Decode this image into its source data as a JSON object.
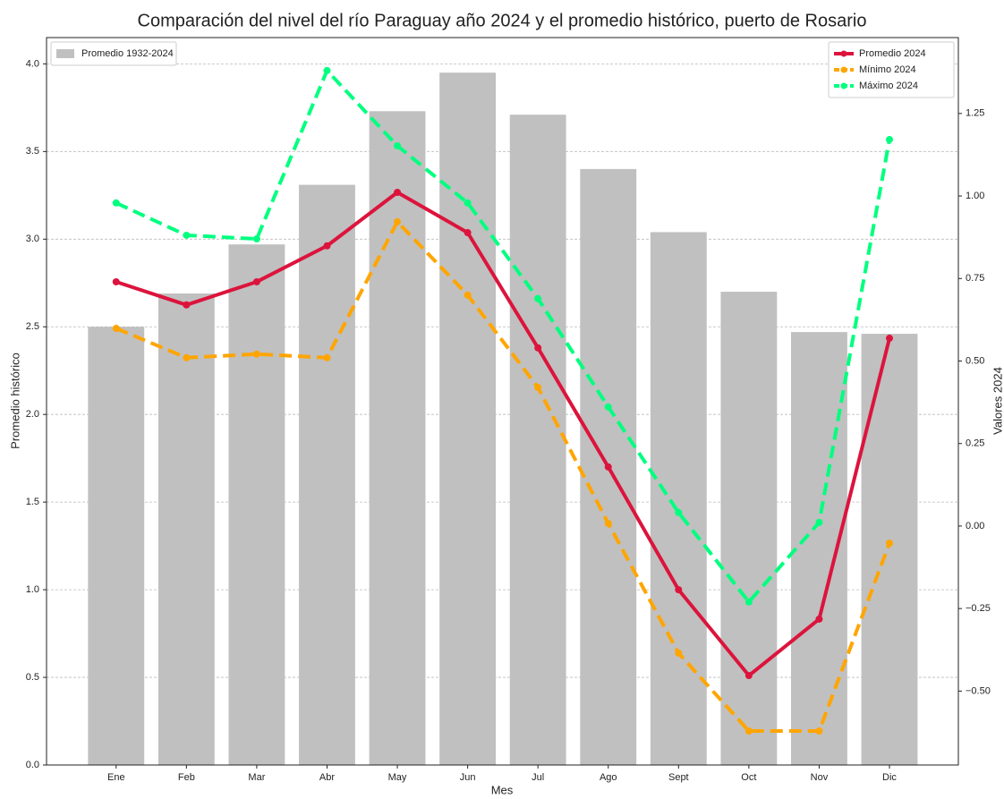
{
  "chart_data": {
    "type": "combo",
    "title": "Comparación del nivel del río Paraguay año 2024 y el promedio histórico, puerto de Rosario",
    "xlabel": "Mes",
    "ylabel": "Promedio histórico",
    "y2label": "Valores 2024",
    "categories": [
      "Ene",
      "Feb",
      "Mar",
      "Abr",
      "May",
      "Jun",
      "Jul",
      "Ago",
      "Sept",
      "Oct",
      "Nov",
      "Dic"
    ],
    "series": [
      {
        "name": "Promedio 1932-2024",
        "color": "#c0c0c0",
        "kind": "bar",
        "values": [
          2.5,
          2.69,
          2.97,
          3.31,
          3.73,
          3.95,
          3.71,
          3.4,
          3.04,
          2.7,
          2.47,
          2.46
        ]
      },
      {
        "name": "Promedio 2024",
        "color": "#dc143c",
        "kind": "line",
        "dashed": false,
        "axis": "y2",
        "values": [
          0.74,
          0.67,
          0.74,
          0.849,
          1.011,
          0.889,
          0.54,
          0.179,
          -0.193,
          -0.453,
          -0.282,
          0.569
        ]
      },
      {
        "name": "Mínimo 2024",
        "color": "#ffa500",
        "kind": "line",
        "dashed": true,
        "axis": "y2",
        "values": [
          0.599,
          0.51,
          0.521,
          0.51,
          0.922,
          0.7,
          0.42,
          0.008,
          -0.385,
          -0.621,
          -0.621,
          -0.052
        ]
      },
      {
        "name": "Máximo 2024",
        "color": "#00ff7f",
        "kind": "line",
        "dashed": true,
        "axis": "y2",
        "values": [
          0.979,
          0.881,
          0.87,
          1.38,
          1.152,
          0.979,
          0.689,
          0.361,
          0.041,
          -0.23,
          0.011,
          1.171
        ]
      }
    ],
    "ylim": [
      0,
      4.15
    ],
    "yticks": [
      {
        "value": 0,
        "label": "0.0"
      },
      {
        "value": 0.5,
        "label": "0.5"
      },
      {
        "value": 1,
        "label": "1.0"
      },
      {
        "value": 1.5,
        "label": "1.5"
      },
      {
        "value": 2,
        "label": "2.0"
      },
      {
        "value": 2.5,
        "label": "2.5"
      },
      {
        "value": 3,
        "label": "3.0"
      },
      {
        "value": 3.5,
        "label": "3.5"
      },
      {
        "value": 4,
        "label": "4.0"
      }
    ],
    "y2lim": [
      -0.724,
      1.48
    ],
    "y2ticks": [
      {
        "value": -0.5,
        "label": "−0.50"
      },
      {
        "value": -0.25,
        "label": "−0.25"
      },
      {
        "value": 0,
        "label": "0.00"
      },
      {
        "value": 0.25,
        "label": "0.25"
      },
      {
        "value": 0.5,
        "label": "0.50"
      },
      {
        "value": 0.75,
        "label": "0.75"
      },
      {
        "value": 1,
        "label": "1.00"
      },
      {
        "value": 1.25,
        "label": "1.25"
      }
    ],
    "grid": true,
    "bar_legend": "upper left",
    "line_legend": "upper right"
  }
}
